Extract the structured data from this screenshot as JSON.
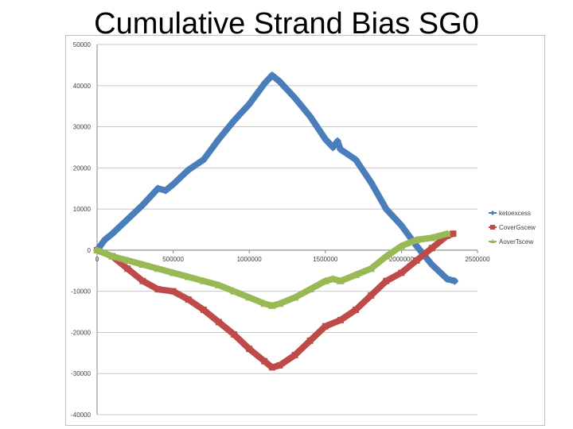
{
  "slide": {
    "title": "Cumulative Strand Bias SG0"
  },
  "chart_data": {
    "type": "line",
    "title": "",
    "xlabel": "",
    "ylabel": "",
    "xlim": [
      0,
      2500000
    ],
    "ylim": [
      -40000,
      50000
    ],
    "x_ticks": [
      0,
      500000,
      1000000,
      1500000,
      2000000,
      2500000
    ],
    "x_tick_labels": [
      "0",
      "500000",
      "1000000",
      "1500000",
      "2000000",
      "2500000"
    ],
    "y_ticks": [
      50000,
      40000,
      30000,
      20000,
      10000,
      0,
      -10000,
      -20000,
      -30000,
      -40000
    ],
    "y_tick_labels": [
      "50000",
      "40000",
      "30000",
      "20000",
      "10000",
      "0",
      "-10000",
      "-20000",
      "-30000",
      "-40000"
    ],
    "grid": "horizontal",
    "legend": "right",
    "series": [
      {
        "name": "ketoexcess",
        "color": "#4a7ebb",
        "marker": "diamond",
        "x": [
          0,
          50000,
          100000,
          200000,
          300000,
          400000,
          450000,
          500000,
          600000,
          700000,
          800000,
          900000,
          1000000,
          1100000,
          1150000,
          1200000,
          1300000,
          1400000,
          1500000,
          1550000,
          1580000,
          1600000,
          1700000,
          1800000,
          1900000,
          2000000,
          2100000,
          2200000,
          2300000,
          2350000
        ],
        "y": [
          0,
          2500,
          4000,
          7500,
          11000,
          15000,
          14500,
          16000,
          19500,
          22000,
          27000,
          31500,
          35500,
          40500,
          42500,
          41000,
          37000,
          32500,
          27000,
          25000,
          26500,
          24500,
          22000,
          16500,
          10000,
          6000,
          1000,
          -3500,
          -7000,
          -7500
        ]
      },
      {
        "name": "CoverGscew",
        "color": "#be4b48",
        "marker": "square",
        "x": [
          0,
          100000,
          200000,
          300000,
          400000,
          500000,
          600000,
          700000,
          800000,
          900000,
          1000000,
          1100000,
          1150000,
          1200000,
          1300000,
          1400000,
          1500000,
          1600000,
          1700000,
          1800000,
          1900000,
          2000000,
          2100000,
          2200000,
          2300000,
          2340000
        ],
        "y": [
          0,
          -1500,
          -4500,
          -7500,
          -9500,
          -10000,
          -12000,
          -14500,
          -17500,
          -20500,
          -24000,
          -27000,
          -28500,
          -28000,
          -25500,
          -22000,
          -18500,
          -17000,
          -14500,
          -11000,
          -7500,
          -5500,
          -2500,
          500,
          3500,
          4000
        ]
      },
      {
        "name": "AoverTscew",
        "color": "#98b954",
        "marker": "triangle",
        "x": [
          0,
          100000,
          200000,
          300000,
          400000,
          500000,
          600000,
          700000,
          800000,
          900000,
          1000000,
          1100000,
          1150000,
          1200000,
          1300000,
          1400000,
          1500000,
          1550000,
          1600000,
          1700000,
          1800000,
          1900000,
          2000000,
          2100000,
          2200000,
          2300000
        ],
        "y": [
          0,
          -1500,
          -2500,
          -3500,
          -4500,
          -5500,
          -6500,
          -7500,
          -8500,
          -10000,
          -11500,
          -13000,
          -13500,
          -13000,
          -11500,
          -9500,
          -7500,
          -7000,
          -7500,
          -6000,
          -4500,
          -1500,
          1000,
          2500,
          3000,
          4000
        ]
      }
    ]
  }
}
